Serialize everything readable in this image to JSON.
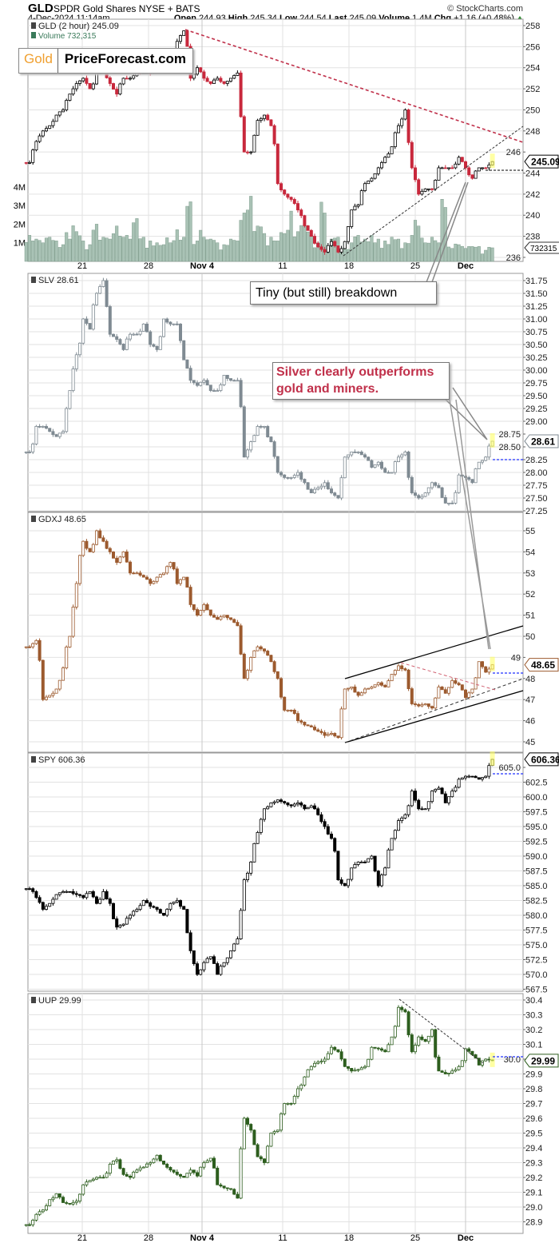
{
  "header": {
    "symbol": "GLD",
    "name": "SPDR Gold Shares NYSE + BATS",
    "copyright": "© StockCharts.com",
    "datetime": "4-Dec-2024 11:14am",
    "open_label": "Open",
    "open": "244.93",
    "high_label": "High",
    "high": "245.34",
    "low_label": "Low",
    "low": "244.54",
    "last_label": "Last",
    "last": "245.09",
    "volume_label": "Volume",
    "volume": "1.4M",
    "chg_label": "Chg",
    "chg": "+1.16 (+0.48%)"
  },
  "logo": {
    "part1": "Gold",
    "part2": "PriceForecast.com"
  },
  "annotations": {
    "breakdown": "Tiny (but still) breakdown",
    "silver_line1": "Silver clearly outperforms",
    "silver_line2": "gold and miners."
  },
  "x_axis": {
    "labels": [
      "21",
      "28",
      "Nov 4",
      "11",
      "18",
      "25",
      "Dec"
    ]
  },
  "chart_data": [
    {
      "type": "candlestick",
      "label": "GLD (2 hour) 245.09",
      "volume_label": "Volume 732,315",
      "last": "245.09",
      "volume_last": "732315",
      "ylim": [
        236,
        258
      ],
      "yticks": [
        "236",
        "238",
        "240",
        "242",
        "244",
        "246",
        "248",
        "250",
        "252",
        "254",
        "256",
        "258"
      ],
      "volume_ticks": [
        "1M",
        "2M",
        "3M",
        "4M"
      ],
      "colors": {
        "up": "#000000",
        "down": "#c8283c",
        "volume": "#a9c2b5"
      },
      "closes": [
        245,
        247,
        248,
        248.5,
        249.5,
        250,
        251.5,
        252.5,
        253,
        252,
        253.5,
        253.5,
        252.5,
        251.5,
        253,
        253,
        253.5,
        253.5,
        253.5,
        254.5,
        254.5,
        255.5,
        256.5,
        257.5,
        253,
        254,
        253,
        252.5,
        253,
        252.5,
        253,
        253.5,
        246,
        246,
        249,
        249.5,
        248.5,
        243,
        242,
        241.5,
        240.5,
        239,
        238,
        237,
        236.5,
        237.5,
        236.5,
        237.5,
        240.5,
        241,
        243,
        243.5,
        244.5,
        245.5,
        246.5,
        248.5,
        250,
        244.5,
        242,
        242.5,
        242.5,
        244.5,
        244.5,
        244.5,
        245.5,
        244.5,
        243.5,
        244.5,
        244.5,
        245.09
      ],
      "volume_m": [
        1.4,
        1.2,
        1.0,
        1.3,
        1.1,
        0.9,
        1.2,
        1.6,
        1.1,
        0.9,
        2.0,
        1.3,
        1.2,
        1.9,
        1.3,
        1.2,
        2.3,
        1.3,
        1.1,
        1.0,
        0.9,
        1.0,
        1.7,
        1.3,
        3.2,
        1.1,
        1.3,
        1.2,
        1.0,
        0.9,
        1.2,
        1.1,
        2.6,
        3.5,
        1.9,
        1.5,
        1.3,
        1.1,
        1.5,
        2.7,
        1.6,
        1.9,
        1.4,
        1.0,
        2.6,
        1.2,
        1.3,
        1.0,
        1.0,
        1.4,
        1.2,
        1.4,
        1.2,
        1.1,
        1.3,
        1.2,
        1.0,
        1.4,
        1.9,
        1.0,
        1.3,
        1.0,
        2.9,
        0.7,
        0.9,
        0.7,
        0.8,
        0.8,
        0.6,
        0.73
      ]
    },
    {
      "type": "candlestick",
      "label": "SLV 28.61",
      "last": "28.61",
      "ylim": [
        27.25,
        31.75
      ],
      "yticks": [
        "27.25",
        "27.50",
        "27.75",
        "28.00",
        "28.25",
        "28.50",
        "28.75",
        "29.00",
        "29.25",
        "29.50",
        "29.75",
        "30.00",
        "30.25",
        "30.50",
        "30.75",
        "31.00",
        "31.25",
        "31.50",
        "31.75"
      ],
      "colors": {
        "up": "#7f8a92",
        "down": "#7f8a92"
      },
      "closes": [
        28.4,
        28.9,
        28.9,
        28.8,
        28.7,
        28.8,
        29.6,
        30.3,
        31.0,
        30.8,
        31.5,
        31.75,
        30.7,
        30.6,
        30.4,
        30.7,
        30.7,
        30.9,
        30.5,
        30.4,
        31.0,
        30.9,
        30.9,
        30.2,
        29.8,
        29.7,
        29.8,
        29.6,
        29.6,
        29.9,
        29.8,
        29.8,
        28.3,
        28.6,
        28.9,
        28.9,
        28.6,
        28.0,
        27.9,
        27.9,
        28.0,
        27.8,
        27.6,
        27.7,
        27.8,
        27.6,
        27.5,
        28.3,
        28.4,
        28.4,
        28.3,
        28.1,
        28.2,
        28.0,
        28.0,
        28.3,
        28.4,
        27.6,
        27.5,
        27.6,
        27.8,
        27.7,
        27.4,
        27.4,
        27.95,
        27.9,
        27.8,
        28.2,
        28.3,
        28.61
      ]
    },
    {
      "type": "candlestick",
      "label": "GDXJ 48.65",
      "last": "48.65",
      "ylim": [
        45,
        55
      ],
      "yticks": [
        "45",
        "46",
        "47",
        "48",
        "49",
        "50",
        "51",
        "52",
        "53",
        "54",
        "55"
      ],
      "colors": {
        "up": "#9c5a2e",
        "down": "#9c5a2e"
      },
      "closes": [
        49.5,
        49.8,
        47,
        47.2,
        47.5,
        48.5,
        50,
        52.5,
        54.5,
        54,
        55,
        54.5,
        54,
        53.5,
        54,
        53,
        53,
        52.8,
        52.5,
        52.8,
        53,
        53.5,
        52.5,
        52.8,
        51.5,
        51,
        51.5,
        51,
        50.8,
        51,
        50.8,
        50.5,
        48,
        49,
        49.5,
        49.3,
        48.8,
        48,
        46.5,
        46.5,
        46,
        45.8,
        45.7,
        45.5,
        45.3,
        45.4,
        45.2,
        47.5,
        47.6,
        47.2,
        47.5,
        47.6,
        47.8,
        47.6,
        48.2,
        48.6,
        48.4,
        46.8,
        46.7,
        46.8,
        46.6,
        47.6,
        47.3,
        47.9,
        47.7,
        47.1,
        47.5,
        48.8,
        48.3,
        48.65
      ]
    },
    {
      "type": "candlestick",
      "label": "SPY 606.36",
      "last": "606.36",
      "ylim": [
        567.5,
        605
      ],
      "yticks": [
        "567.5",
        "570.0",
        "572.5",
        "575.0",
        "577.5",
        "580.0",
        "582.5",
        "585.0",
        "587.5",
        "590.0",
        "592.5",
        "595.0",
        "597.5",
        "600.0",
        "602.5",
        "605.0"
      ],
      "colors": {
        "up": "#000000",
        "down": "#000000"
      },
      "closes": [
        584.5,
        583,
        581,
        582,
        583.5,
        584,
        584,
        583.5,
        583,
        584,
        582,
        584,
        582,
        578,
        578.5,
        580,
        581,
        582.5,
        581.5,
        581,
        580,
        582,
        582.5,
        581,
        574,
        570,
        572,
        573,
        570,
        572,
        574,
        576,
        586,
        589,
        594,
        598,
        599,
        599.5,
        599,
        598.5,
        599,
        598,
        598.5,
        597,
        595,
        593,
        586,
        585,
        588,
        589,
        589,
        590,
        585,
        588,
        593,
        596,
        597,
        601,
        598,
        598,
        601,
        601.5,
        599,
        601,
        603,
        603.5,
        603.5,
        603,
        603.5,
        606.36
      ]
    },
    {
      "type": "candlestick",
      "label": "UUP 29.99",
      "last": "29.99",
      "ylim": [
        28.9,
        30.4
      ],
      "yticks": [
        "28.9",
        "29.0",
        "29.1",
        "29.2",
        "29.3",
        "29.4",
        "29.5",
        "29.6",
        "29.7",
        "29.8",
        "29.9",
        "30.0",
        "30.1",
        "30.2",
        "30.3",
        "30.4"
      ],
      "colors": {
        "up": "#2d5e1e",
        "down": "#2d5e1e"
      },
      "closes": [
        28.88,
        28.95,
        28.98,
        29.05,
        29.09,
        29.03,
        29.02,
        29.04,
        29.15,
        29.18,
        29.2,
        29.2,
        29.29,
        29.32,
        29.22,
        29.2,
        29.25,
        29.27,
        29.3,
        29.35,
        29.29,
        29.25,
        29.22,
        29.2,
        29.25,
        29.21,
        29.3,
        29.33,
        29.15,
        29.13,
        29.12,
        29.06,
        29.6,
        29.52,
        29.34,
        29.3,
        29.5,
        29.52,
        29.7,
        29.7,
        29.8,
        29.88,
        29.95,
        29.98,
        30.0,
        30.08,
        30.05,
        29.95,
        29.92,
        29.93,
        29.95,
        30.08,
        30.07,
        30.05,
        30.15,
        30.35,
        30.32,
        30.05,
        30.15,
        30.12,
        30.2,
        29.92,
        29.9,
        29.92,
        29.95,
        30.07,
        30.03,
        29.96,
        30.0,
        29.99
      ]
    }
  ]
}
